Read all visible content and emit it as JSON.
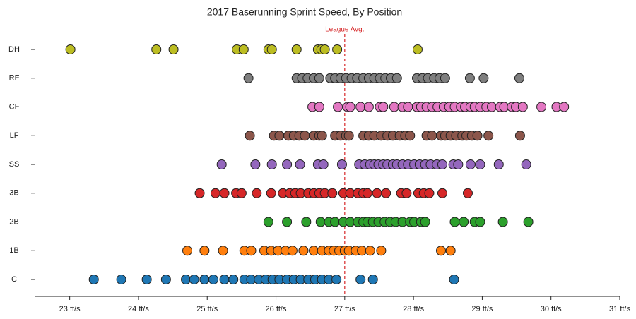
{
  "chart_data": {
    "type": "strip",
    "title": "2017 Baserunning Sprint Speed, By Position",
    "xlim": [
      22.5,
      31
    ],
    "xticks": [
      {
        "value": 23,
        "label": "23 ft/s"
      },
      {
        "value": 24,
        "label": "24 ft/s"
      },
      {
        "value": 25,
        "label": "25 ft/s"
      },
      {
        "value": 26,
        "label": "26 ft/s"
      },
      {
        "value": 27,
        "label": "27 ft/s"
      },
      {
        "value": 28,
        "label": "28 ft/s"
      },
      {
        "value": 29,
        "label": "29 ft/s"
      },
      {
        "value": 30,
        "label": "30 ft/s"
      },
      {
        "value": 31,
        "label": "31 ft/s"
      }
    ],
    "reference_line": {
      "value": 27,
      "label": "League Avg.",
      "color": "#d62728"
    },
    "grid": false,
    "series": [
      {
        "name": "DH",
        "color": "#bcbd22",
        "values": [
          23.01,
          24.26,
          24.51,
          25.43,
          25.53,
          25.89,
          25.94,
          26.3,
          26.61,
          26.66,
          26.71,
          26.89,
          28.06
        ]
      },
      {
        "name": "RF",
        "color": "#7f7f7f",
        "values": [
          25.6,
          26.3,
          26.38,
          26.46,
          26.55,
          26.63,
          26.79,
          26.86,
          26.94,
          27.02,
          27.1,
          27.18,
          27.27,
          27.35,
          27.43,
          27.51,
          27.59,
          27.67,
          27.76,
          28.05,
          28.13,
          28.21,
          28.3,
          28.38,
          28.46,
          28.82,
          29.02,
          29.54
        ]
      },
      {
        "name": "CF",
        "color": "#e377c2",
        "values": [
          26.53,
          26.63,
          26.9,
          27.04,
          27.08,
          27.23,
          27.35,
          27.51,
          27.56,
          27.72,
          27.84,
          27.92,
          28.05,
          28.11,
          28.19,
          28.27,
          28.35,
          28.44,
          28.52,
          28.6,
          28.69,
          28.75,
          28.83,
          28.89,
          28.97,
          29.06,
          29.14,
          29.26,
          29.32,
          29.43,
          29.49,
          29.59,
          29.86,
          30.08,
          30.19
        ]
      },
      {
        "name": "LF",
        "color": "#8c564b",
        "values": [
          25.62,
          25.97,
          26.05,
          26.18,
          26.26,
          26.34,
          26.42,
          26.55,
          26.63,
          26.67,
          26.86,
          26.94,
          27.02,
          27.06,
          27.27,
          27.35,
          27.43,
          27.53,
          27.62,
          27.7,
          27.8,
          27.88,
          27.95,
          28.19,
          28.27,
          28.4,
          28.46,
          28.54,
          28.62,
          28.71,
          28.77,
          28.85,
          28.93,
          29.09,
          29.55
        ]
      },
      {
        "name": "SS",
        "color": "#9467bd",
        "values": [
          25.21,
          25.7,
          25.94,
          26.16,
          26.35,
          26.61,
          26.69,
          26.96,
          27.21,
          27.29,
          27.37,
          27.43,
          27.49,
          27.56,
          27.62,
          27.7,
          27.76,
          27.84,
          27.92,
          28.01,
          28.09,
          28.17,
          28.25,
          28.34,
          28.42,
          28.58,
          28.65,
          28.83,
          28.97,
          29.24,
          29.64
        ]
      },
      {
        "name": "3B",
        "color": "#d62728",
        "values": [
          24.89,
          25.12,
          25.25,
          25.42,
          25.5,
          25.72,
          25.93,
          26.1,
          26.2,
          26.28,
          26.36,
          26.47,
          26.55,
          26.63,
          26.71,
          26.82,
          26.98,
          27.08,
          27.19,
          27.27,
          27.33,
          27.47,
          27.6,
          27.82,
          27.9,
          28.07,
          28.15,
          28.23,
          28.42,
          28.79
        ]
      },
      {
        "name": "2B",
        "color": "#2ca02c",
        "values": [
          25.89,
          26.16,
          26.44,
          26.65,
          26.77,
          26.86,
          26.98,
          27.08,
          27.19,
          27.27,
          27.33,
          27.41,
          27.49,
          27.58,
          27.66,
          27.74,
          27.84,
          27.95,
          28.01,
          28.11,
          28.17,
          28.6,
          28.73,
          28.89,
          28.97,
          29.3,
          29.67
        ]
      },
      {
        "name": "1B",
        "color": "#ff7f0e",
        "values": [
          24.71,
          24.96,
          25.23,
          25.54,
          25.64,
          25.83,
          25.93,
          26.03,
          26.14,
          26.24,
          26.4,
          26.55,
          26.67,
          26.77,
          26.84,
          26.92,
          27.0,
          27.06,
          27.16,
          27.25,
          27.37,
          27.53,
          28.4,
          28.54
        ]
      },
      {
        "name": "C",
        "color": "#1f77b4",
        "values": [
          23.35,
          23.75,
          24.12,
          24.4,
          24.69,
          24.81,
          24.96,
          25.09,
          25.25,
          25.38,
          25.54,
          25.64,
          25.75,
          25.85,
          25.95,
          26.05,
          26.16,
          26.26,
          26.36,
          26.47,
          26.57,
          26.67,
          26.77,
          26.88,
          27.23,
          27.41,
          28.59
        ]
      }
    ]
  }
}
